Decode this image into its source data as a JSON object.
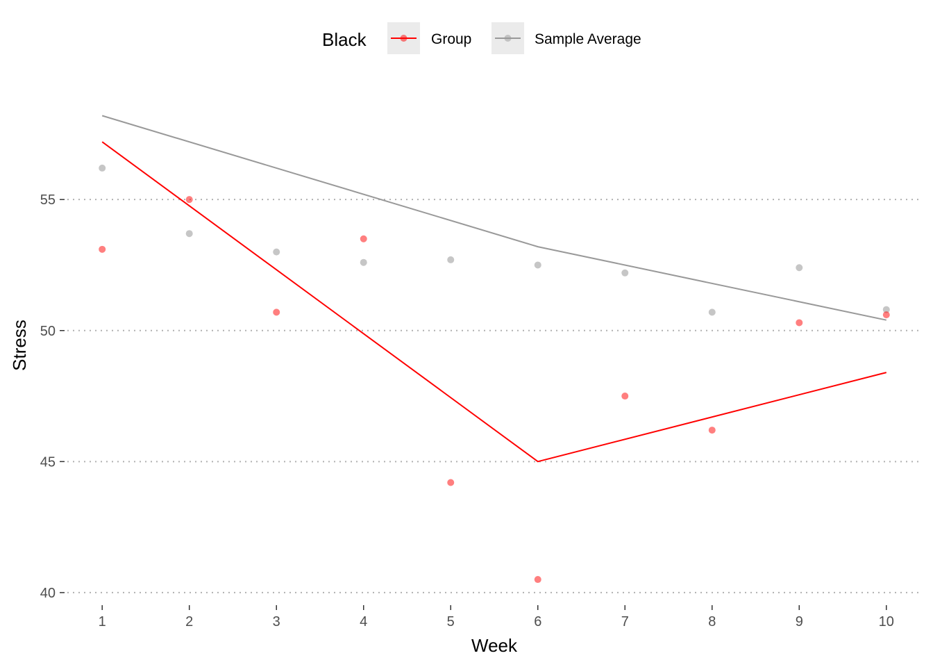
{
  "chart_data": {
    "type": "line",
    "xlabel": "Week",
    "ylabel": "Stress",
    "x": [
      1,
      2,
      3,
      4,
      5,
      6,
      7,
      8,
      9,
      10
    ],
    "xlim": [
      0.6,
      10.4
    ],
    "ylim": [
      39.6,
      59.3
    ],
    "yticks": [
      40,
      45,
      50,
      55
    ],
    "grid": "horizontal dotted",
    "legend": {
      "title": "Black",
      "position": "top",
      "entries": [
        "Group",
        "Sample Average"
      ]
    },
    "series": [
      {
        "name": "Group",
        "color": "#ff0000",
        "line": [
          [
            1,
            57.2
          ],
          [
            6,
            45.0
          ],
          [
            10,
            48.4
          ]
        ],
        "points": [
          53.1,
          55.0,
          50.7,
          53.5,
          44.2,
          40.5,
          47.5,
          46.2,
          50.3,
          50.6
        ]
      },
      {
        "name": "Sample Average",
        "color": "#999999",
        "point_color": "#b3b3b3",
        "line": [
          [
            1,
            58.2
          ],
          [
            6,
            53.2
          ],
          [
            10,
            50.4
          ]
        ],
        "points": [
          56.2,
          53.7,
          53.0,
          52.6,
          52.7,
          52.5,
          52.2,
          50.7,
          52.4,
          50.8
        ]
      }
    ]
  }
}
